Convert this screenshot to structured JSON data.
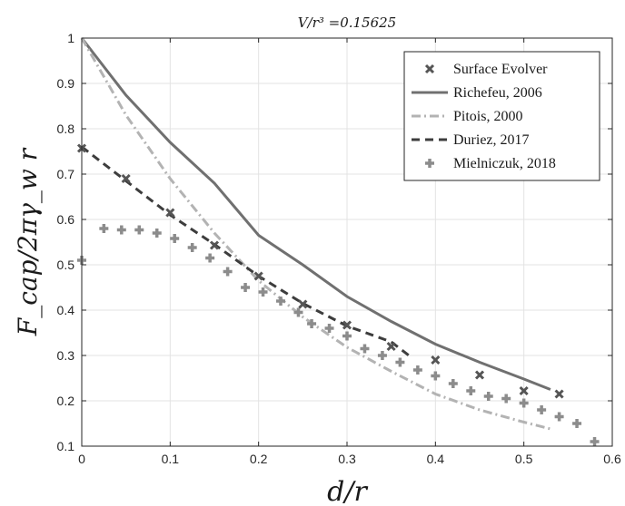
{
  "chart_data": {
    "type": "line",
    "title": "V/r³ =0.15625",
    "xlabel": "d/r",
    "ylabel": "F_cap/2πγ_w r",
    "xlim": [
      0,
      0.6
    ],
    "ylim": [
      0.1,
      1
    ],
    "grid": true,
    "legend_position": "top-right",
    "x_ticks": [
      "0",
      "0.1",
      "0.2",
      "0.3",
      "0.4",
      "0.5",
      "0.6"
    ],
    "y_ticks": [
      "0.1",
      "0.2",
      "0.3",
      "0.4",
      "0.5",
      "0.6",
      "0.7",
      "0.8",
      "0.9",
      "1"
    ],
    "series": [
      {
        "name": "Surface Evolver",
        "style": "marker-x",
        "color": "#555555",
        "points": [
          [
            0,
            0.757
          ],
          [
            0.05,
            0.69
          ],
          [
            0.1,
            0.615
          ],
          [
            0.15,
            0.543
          ],
          [
            0.2,
            0.475
          ],
          [
            0.25,
            0.413
          ],
          [
            0.3,
            0.367
          ],
          [
            0.35,
            0.32
          ],
          [
            0.4,
            0.29
          ],
          [
            0.45,
            0.257
          ],
          [
            0.5,
            0.222
          ],
          [
            0.54,
            0.215
          ]
        ]
      },
      {
        "name": "Richefeu, 2006",
        "style": "solid",
        "color": "#707070",
        "points": [
          [
            0,
            1
          ],
          [
            0.05,
            0.874
          ],
          [
            0.1,
            0.77
          ],
          [
            0.15,
            0.68
          ],
          [
            0.2,
            0.565
          ],
          [
            0.25,
            0.5
          ],
          [
            0.3,
            0.43
          ],
          [
            0.35,
            0.375
          ],
          [
            0.4,
            0.325
          ],
          [
            0.45,
            0.285
          ],
          [
            0.5,
            0.248
          ],
          [
            0.53,
            0.225
          ]
        ]
      },
      {
        "name": "Pitois, 2000",
        "style": "dashdot",
        "color": "#b3b3b3",
        "points": [
          [
            0,
            1
          ],
          [
            0.05,
            0.83
          ],
          [
            0.1,
            0.69
          ],
          [
            0.15,
            0.57
          ],
          [
            0.2,
            0.465
          ],
          [
            0.25,
            0.385
          ],
          [
            0.3,
            0.318
          ],
          [
            0.35,
            0.265
          ],
          [
            0.4,
            0.215
          ],
          [
            0.45,
            0.18
          ],
          [
            0.5,
            0.153
          ],
          [
            0.53,
            0.138
          ]
        ]
      },
      {
        "name": "Duriez, 2017",
        "style": "dashed",
        "color": "#3d3d3d",
        "points": [
          [
            0,
            0.76
          ],
          [
            0.05,
            0.685
          ],
          [
            0.1,
            0.61
          ],
          [
            0.15,
            0.545
          ],
          [
            0.2,
            0.475
          ],
          [
            0.25,
            0.415
          ],
          [
            0.3,
            0.365
          ],
          [
            0.35,
            0.33
          ],
          [
            0.37,
            0.3
          ]
        ]
      },
      {
        "name": "Mielniczuk, 2018",
        "style": "marker-plus",
        "color": "#8c8c8c",
        "points": [
          [
            0,
            0.51
          ],
          [
            0.025,
            0.58
          ],
          [
            0.045,
            0.577
          ],
          [
            0.065,
            0.577
          ],
          [
            0.085,
            0.57
          ],
          [
            0.105,
            0.558
          ],
          [
            0.125,
            0.538
          ],
          [
            0.145,
            0.515
          ],
          [
            0.165,
            0.485
          ],
          [
            0.185,
            0.45
          ],
          [
            0.205,
            0.44
          ],
          [
            0.225,
            0.42
          ],
          [
            0.245,
            0.395
          ],
          [
            0.26,
            0.37
          ],
          [
            0.28,
            0.36
          ],
          [
            0.3,
            0.343
          ],
          [
            0.32,
            0.315
          ],
          [
            0.34,
            0.3
          ],
          [
            0.36,
            0.285
          ],
          [
            0.38,
            0.268
          ],
          [
            0.4,
            0.255
          ],
          [
            0.42,
            0.238
          ],
          [
            0.44,
            0.222
          ],
          [
            0.46,
            0.21
          ],
          [
            0.48,
            0.205
          ],
          [
            0.5,
            0.195
          ],
          [
            0.52,
            0.18
          ],
          [
            0.54,
            0.165
          ],
          [
            0.56,
            0.15
          ],
          [
            0.58,
            0.11
          ]
        ]
      }
    ]
  }
}
